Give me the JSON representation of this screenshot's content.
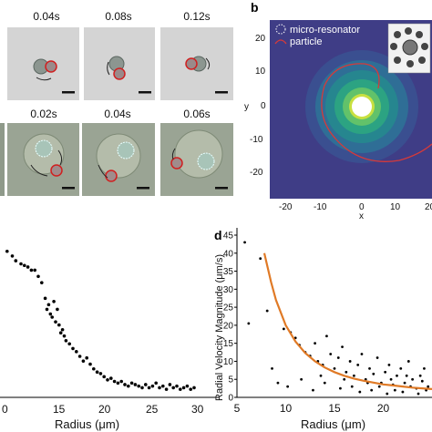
{
  "panels": {
    "a": {
      "row1_times": [
        "0.04s",
        "0.08s",
        "0.12s"
      ],
      "row2_times": [
        "0.02s",
        "0.04s",
        "0.06s"
      ]
    },
    "b": {
      "letter": "b",
      "legend": [
        "micro-resonator",
        "particle"
      ],
      "xlabel": "x",
      "ylabel": "y",
      "xticks": [
        "-20",
        "-10",
        "0",
        "10",
        "20"
      ],
      "yticks": [
        "20",
        "10",
        "0",
        "-10",
        "-20"
      ],
      "colors": {
        "background": "#3f3d86",
        "particle_path": "#d63a3a",
        "resonator": "#ffffff"
      }
    },
    "c": {
      "xlabel": "Radius (μm)",
      "xticks": [
        "0",
        "15",
        "20",
        "25",
        "30"
      ]
    },
    "d": {
      "letter": "d",
      "ylabel": "Radial Velocity Magnitude (μm/s)",
      "xlabel": "Radius (μm)",
      "xticks": [
        "5",
        "10",
        "15",
        "20"
      ],
      "yticks": [
        "45",
        "40",
        "35",
        "30",
        "25",
        "20",
        "15",
        "10",
        "5",
        "0"
      ],
      "colors": {
        "fit": "#e07a26",
        "points": "#000000"
      }
    }
  },
  "chart_data": [
    {
      "type": "scatter",
      "panel": "c",
      "xlabel": "Radius (μm)",
      "xlim": [
        10,
        34
      ],
      "ylim": [
        0,
        1
      ],
      "x": [
        10.4,
        11.0,
        11.4,
        12.0,
        12.4,
        12.8,
        13.2,
        13.6,
        14.0,
        14.4,
        14.8,
        15.0,
        15.2,
        15.4,
        15.6,
        15.8,
        16.0,
        16.2,
        16.4,
        16.6,
        16.8,
        17.0,
        17.2,
        17.6,
        18.0,
        18.4,
        18.8,
        19.2,
        19.6,
        20.0,
        20.4,
        20.8,
        21.2,
        21.6,
        22.0,
        22.4,
        22.8,
        23.2,
        23.6,
        24.0,
        24.4,
        24.8,
        25.2,
        25.6,
        26.0,
        26.4,
        26.8,
        27.2,
        27.6,
        28.0,
        28.4,
        28.8,
        29.2,
        29.6,
        30.0,
        30.4,
        30.8,
        31.2,
        31.6,
        32.0
      ],
      "y": [
        0.92,
        0.89,
        0.86,
        0.84,
        0.83,
        0.82,
        0.8,
        0.8,
        0.76,
        0.72,
        0.62,
        0.55,
        0.58,
        0.52,
        0.5,
        0.6,
        0.47,
        0.55,
        0.45,
        0.4,
        0.42,
        0.38,
        0.35,
        0.33,
        0.3,
        0.28,
        0.25,
        0.22,
        0.24,
        0.2,
        0.17,
        0.15,
        0.14,
        0.12,
        0.1,
        0.11,
        0.09,
        0.08,
        0.09,
        0.07,
        0.06,
        0.08,
        0.07,
        0.06,
        0.05,
        0.07,
        0.05,
        0.06,
        0.08,
        0.05,
        0.06,
        0.04,
        0.07,
        0.05,
        0.06,
        0.04,
        0.05,
        0.06,
        0.04,
        0.05
      ]
    },
    {
      "type": "scatter",
      "panel": "d",
      "xlabel": "Radius (μm)",
      "ylabel": "Radial Velocity Magnitude (μm/s)",
      "xlim": [
        5,
        25
      ],
      "ylim": [
        0,
        45
      ],
      "points": [
        [
          5.8,
          43
        ],
        [
          7.4,
          38.5
        ],
        [
          6.2,
          20.5
        ],
        [
          8.1,
          24
        ],
        [
          9.8,
          19
        ],
        [
          10.5,
          18
        ],
        [
          11.0,
          16.5
        ],
        [
          11.4,
          14.5
        ],
        [
          12.0,
          12.5
        ],
        [
          12.5,
          11.5
        ],
        [
          13.0,
          15
        ],
        [
          13.3,
          10
        ],
        [
          13.8,
          9
        ],
        [
          14.2,
          17
        ],
        [
          14.6,
          12
        ],
        [
          15.0,
          8
        ],
        [
          15.4,
          11
        ],
        [
          15.8,
          14
        ],
        [
          16.2,
          7
        ],
        [
          16.6,
          10
        ],
        [
          17.0,
          6
        ],
        [
          17.4,
          9
        ],
        [
          17.8,
          12
        ],
        [
          18.2,
          5
        ],
        [
          18.6,
          8
        ],
        [
          19.0,
          6.5
        ],
        [
          19.4,
          11
        ],
        [
          19.8,
          4
        ],
        [
          20.2,
          7
        ],
        [
          20.6,
          9
        ],
        [
          21.0,
          3.5
        ],
        [
          21.4,
          6
        ],
        [
          21.8,
          8
        ],
        [
          22.2,
          4
        ],
        [
          22.6,
          10
        ],
        [
          23.0,
          5
        ],
        [
          23.4,
          2.5
        ],
        [
          23.8,
          6
        ],
        [
          24.2,
          8
        ],
        [
          24.6,
          3
        ],
        [
          10.2,
          3
        ],
        [
          11.6,
          5
        ],
        [
          12.8,
          2
        ],
        [
          14.0,
          4
        ],
        [
          15.6,
          2.5
        ],
        [
          16.8,
          3
        ],
        [
          17.6,
          1.5
        ],
        [
          18.8,
          2
        ],
        [
          19.6,
          3
        ],
        [
          20.4,
          1
        ],
        [
          21.2,
          2
        ],
        [
          22.0,
          1.5
        ],
        [
          22.8,
          3
        ],
        [
          23.6,
          1
        ],
        [
          24.4,
          2
        ],
        [
          9.2,
          4
        ],
        [
          8.6,
          8
        ],
        [
          13.6,
          6
        ],
        [
          16.0,
          5
        ],
        [
          18.4,
          4
        ],
        [
          20.8,
          5
        ],
        [
          22.4,
          6
        ],
        [
          24.0,
          4.5
        ]
      ],
      "fit": [
        [
          7.8,
          40
        ],
        [
          8.5,
          32
        ],
        [
          9.0,
          27
        ],
        [
          10,
          20
        ],
        [
          11,
          15.5
        ],
        [
          12,
          12.3
        ],
        [
          13,
          10
        ],
        [
          14,
          8.3
        ],
        [
          15,
          7.0
        ],
        [
          16,
          6.0
        ],
        [
          17,
          5.2
        ],
        [
          18,
          4.6
        ],
        [
          19,
          4.1
        ],
        [
          20,
          3.6
        ],
        [
          21,
          3.3
        ],
        [
          22,
          3.0
        ],
        [
          23,
          2.7
        ],
        [
          24,
          2.5
        ],
        [
          25,
          2.3
        ]
      ]
    }
  ]
}
